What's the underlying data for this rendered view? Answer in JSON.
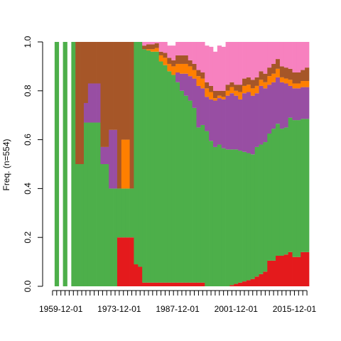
{
  "chart_data": {
    "type": "bar",
    "stacked": true,
    "normalized": true,
    "title": "",
    "xlabel": "",
    "ylabel": "Freq. (n=554)",
    "ylim": [
      0,
      1
    ],
    "y_ticks": [
      "0.0",
      "0.2",
      "0.4",
      "0.6",
      "0.8",
      "1.0"
    ],
    "x_tick_labels": [
      "1959-12-01",
      "1973-12-01",
      "1987-12-01",
      "2001-12-01",
      "2015-12-01"
    ],
    "grid": false,
    "legend": "none",
    "n_bars": 62,
    "categories_note": "yearly periods from 1957-12-01 to 2018-12-01",
    "series": [
      {
        "key": "red",
        "color": "#E41A1C",
        "values": [
          0,
          0,
          0,
          0,
          0,
          0,
          0,
          0,
          0,
          0,
          0,
          0,
          0,
          0,
          0,
          0,
          0.2,
          0.2,
          0.2,
          0.2,
          0.09,
          0.08,
          0.015,
          0.015,
          0.015,
          0.015,
          0.015,
          0.015,
          0.015,
          0.015,
          0.015,
          0.015,
          0.015,
          0.015,
          0.015,
          0.015,
          0.015,
          0,
          0,
          0,
          0,
          0,
          0,
          0.005,
          0.01,
          0.015,
          0.02,
          0.025,
          0.03,
          0.04,
          0.05,
          0.06,
          0.105,
          0.105,
          0.125,
          0.125,
          0.13,
          0.14,
          0.12,
          0.12,
          0.14,
          0.14
        ]
      },
      {
        "key": "green",
        "color": "#4DAF4A",
        "values": [
          0,
          1,
          0,
          1,
          0,
          1,
          0.5,
          0.5,
          0.67,
          0.67,
          0.67,
          0.67,
          0.5,
          0.5,
          0.4,
          0.4,
          0.2,
          0.2,
          0.2,
          0.2,
          0.91,
          0.92,
          0.955,
          0.95,
          0.945,
          0.945,
          0.905,
          0.89,
          0.865,
          0.85,
          0.82,
          0.785,
          0.765,
          0.745,
          0.715,
          0.635,
          0.645,
          0.635,
          0.595,
          0.57,
          0.58,
          0.565,
          0.56,
          0.555,
          0.55,
          0.54,
          0.53,
          0.52,
          0.51,
          0.53,
          0.53,
          0.53,
          0.52,
          0.54,
          0.54,
          0.52,
          0.52,
          0.55,
          0.56,
          0.56,
          0.545,
          0.545
        ]
      },
      {
        "key": "purple",
        "color": "#984EA3",
        "values": [
          0,
          0,
          0,
          0,
          0,
          0,
          0,
          0,
          0.08,
          0.16,
          0.16,
          0.16,
          0.07,
          0.07,
          0.24,
          0.24,
          0,
          0,
          0,
          0,
          0,
          0,
          0,
          0,
          0,
          0,
          0,
          0,
          0,
          0,
          0.04,
          0.07,
          0.09,
          0.1,
          0.12,
          0.17,
          0.15,
          0.14,
          0.17,
          0.19,
          0.19,
          0.2,
          0.22,
          0.23,
          0.22,
          0.21,
          0.24,
          0.25,
          0.24,
          0.22,
          0.24,
          0.22,
          0.2,
          0.19,
          0.19,
          0.19,
          0.18,
          0.13,
          0.13,
          0.13,
          0.13,
          0.13
        ]
      },
      {
        "key": "orange",
        "color": "#FF7F00",
        "values": [
          0,
          0,
          0,
          0,
          0,
          0,
          0,
          0,
          0,
          0,
          0,
          0,
          0,
          0,
          0,
          0,
          0,
          0.2,
          0.2,
          0,
          0,
          0,
          0,
          0.005,
          0.01,
          0.015,
          0.025,
          0.03,
          0.03,
          0.035,
          0.035,
          0.04,
          0.04,
          0.04,
          0.035,
          0.04,
          0.04,
          0.035,
          0.03,
          0.01,
          0.01,
          0.01,
          0.02,
          0.025,
          0.02,
          0.03,
          0.03,
          0.03,
          0.03,
          0.03,
          0.025,
          0.025,
          0.035,
          0.035,
          0.035,
          0.02,
          0.02,
          0.025,
          0.02,
          0.02,
          0.025,
          0.025
        ]
      },
      {
        "key": "brown",
        "color": "#A65628",
        "values": [
          0,
          0,
          0,
          0,
          0,
          0,
          0.5,
          0.5,
          0.25,
          0.17,
          0.17,
          0.17,
          0.43,
          0.43,
          0.36,
          0.36,
          0.6,
          0.4,
          0.4,
          0.8,
          0,
          0,
          0.015,
          0.02,
          0.02,
          0.02,
          0.015,
          0.02,
          0.025,
          0.025,
          0.035,
          0.035,
          0.035,
          0.025,
          0.025,
          0.025,
          0.025,
          0.025,
          0.025,
          0.03,
          0.02,
          0.025,
          0.025,
          0.02,
          0.025,
          0.03,
          0.03,
          0.03,
          0.035,
          0.035,
          0.035,
          0.035,
          0.035,
          0.04,
          0.04,
          0.045,
          0.045,
          0.045,
          0.045,
          0.045,
          0.045,
          0.055
        ]
      },
      {
        "key": "pink",
        "color": "#F781BF",
        "values": [
          0,
          0,
          0,
          0,
          0,
          0,
          0,
          0,
          0,
          0,
          0,
          0,
          0,
          0,
          0,
          0,
          0,
          0,
          0,
          0,
          0,
          0,
          0.015,
          0.015,
          0.02,
          0.03,
          0.04,
          0.045,
          0.05,
          0.06,
          0.055,
          0.055,
          0.055,
          0.075,
          0.09,
          0.115,
          0.125,
          0.15,
          0.16,
          0.16,
          0.185,
          0.18,
          0.18,
          0.17,
          0.175,
          0.175,
          0.15,
          0.145,
          0.16,
          0.145,
          0.125,
          0.135,
          0.105,
          0.105,
          0.09,
          0.105,
          0.105,
          0.11,
          0.125,
          0.125,
          0.115,
          0.105
        ]
      }
    ]
  }
}
